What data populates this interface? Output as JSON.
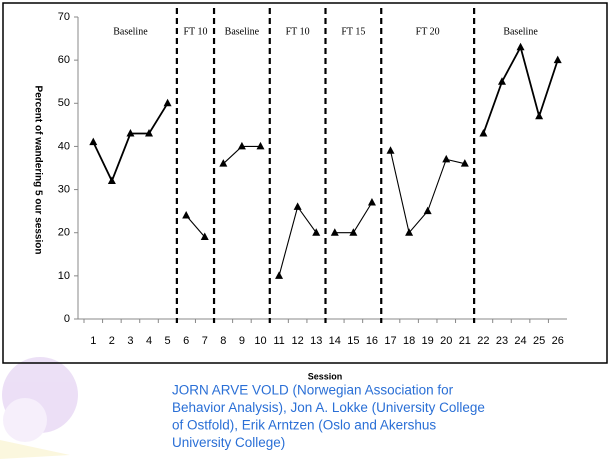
{
  "chart_data": {
    "type": "phase-line",
    "y_label": "Percent of wandering 5 our session",
    "x_label": "Session",
    "xlim": [
      0.5,
      26.5
    ],
    "xticks": [
      1,
      2,
      3,
      4,
      5,
      6,
      7,
      8,
      9,
      10,
      11,
      12,
      13,
      14,
      15,
      16,
      17,
      18,
      19,
      20,
      21,
      22,
      23,
      24,
      25,
      26
    ],
    "ylim": [
      0,
      70
    ],
    "yticks": [
      0,
      10,
      20,
      30,
      40,
      50,
      60,
      70
    ],
    "color": "#000000",
    "phases": [
      {
        "label": "Baseline",
        "x": [
          1,
          2,
          3,
          4,
          5
        ],
        "values": [
          41,
          32,
          43,
          43,
          50
        ]
      },
      {
        "label": "FT 10",
        "x": [
          6,
          7
        ],
        "values": [
          24,
          19
        ]
      },
      {
        "label": "Baseline",
        "x": [
          8,
          9,
          10
        ],
        "values": [
          36,
          40,
          40
        ]
      },
      {
        "label": "FT 10",
        "x": [
          11,
          12,
          13
        ],
        "values": [
          10,
          26,
          20
        ]
      },
      {
        "label": "FT 15",
        "x": [
          14,
          15,
          16
        ],
        "values": [
          20,
          20,
          27
        ]
      },
      {
        "label": "FT 20",
        "x": [
          17,
          18,
          19,
          20,
          21
        ],
        "values": [
          39,
          20,
          25,
          37,
          36
        ]
      },
      {
        "label": "Baseline",
        "x": [
          22,
          23,
          24,
          25,
          26
        ],
        "values": [
          43,
          55,
          63,
          47,
          60
        ]
      }
    ]
  },
  "footer": {
    "lines": [
      "JORN ARVE VOLD (Norwegian Association for",
      "Behavior Analysis), Jon A. Lokke (University College",
      "of Ostfold), Erik Arntzen (Oslo and Akershus",
      "University College)"
    ]
  }
}
